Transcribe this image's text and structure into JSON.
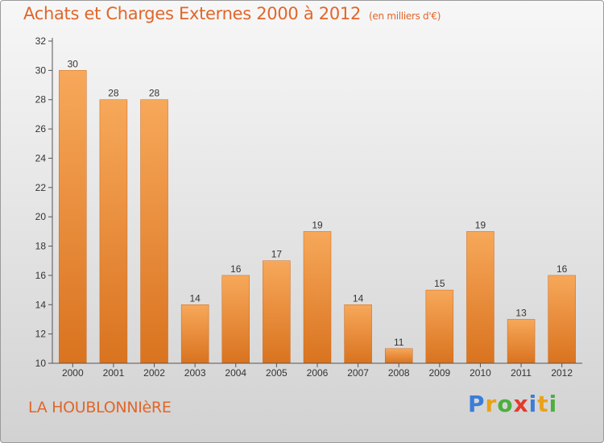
{
  "chart_data": {
    "type": "bar",
    "title": "Achats et Charges Externes 2000 à 2012",
    "subtitle": "(en milliers d'€)",
    "xlabel": "",
    "ylabel": "",
    "categories": [
      "2000",
      "2001",
      "2002",
      "2003",
      "2004",
      "2005",
      "2006",
      "2007",
      "2008",
      "2009",
      "2010",
      "2011",
      "2012"
    ],
    "values": [
      30,
      28,
      28,
      14,
      16,
      17,
      19,
      14,
      11,
      15,
      19,
      13,
      16
    ],
    "ylim": [
      10,
      32
    ],
    "yticks": [
      10,
      12,
      14,
      16,
      18,
      20,
      22,
      24,
      26,
      28,
      30,
      32
    ],
    "grid": false,
    "legend": "none",
    "bar_color_top": "#f7a85a",
    "bar_color_bottom": "#d9731f"
  },
  "footer": {
    "commune": "LA HOUBLONNIèRE",
    "logo_letters": [
      {
        "ch": "P",
        "color": "#3b7dd8"
      },
      {
        "ch": "r",
        "color": "#e8a21b"
      },
      {
        "ch": "o",
        "color": "#4caf3e"
      },
      {
        "ch": "x",
        "color": "#e23b2e"
      },
      {
        "ch": "i",
        "color": "#3b7dd8"
      },
      {
        "ch": "t",
        "color": "#e8a21b"
      },
      {
        "ch": "i",
        "color": "#4caf3e"
      }
    ]
  }
}
